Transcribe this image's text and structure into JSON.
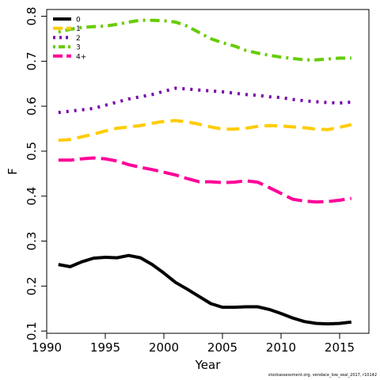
{
  "chart_data": {
    "type": "line",
    "xlabel": "Year",
    "ylabel": "F",
    "xlim": [
      1990,
      2017.5
    ],
    "ylim": [
      0.095,
      0.815
    ],
    "x_ticks": [
      1990,
      1995,
      2000,
      2005,
      2010,
      2015
    ],
    "y_ticks": [
      0.1,
      0.2,
      0.3,
      0.4,
      0.5,
      0.6,
      0.7,
      0.8
    ],
    "x_tick_labels": [
      "1990",
      "1995",
      "2000",
      "2005",
      "2010",
      "2015"
    ],
    "y_tick_labels": [
      "0.1",
      "0.2",
      "0.3",
      "0.4",
      "0.5",
      "0.6",
      "0.7",
      "0.8"
    ],
    "legend_position": "top-left",
    "x": [
      1991,
      1992,
      1993,
      1994,
      1995,
      1996,
      1997,
      1998,
      1999,
      2000,
      2001,
      2002,
      2003,
      2004,
      2005,
      2006,
      2007,
      2008,
      2009,
      2010,
      2011,
      2012,
      2013,
      2014,
      2015,
      2016
    ],
    "series": [
      {
        "name": "0",
        "color": "#000000",
        "dash": "solid",
        "values": [
          0.248,
          0.243,
          0.254,
          0.262,
          0.264,
          0.263,
          0.268,
          0.263,
          0.248,
          0.229,
          0.208,
          0.193,
          0.177,
          0.161,
          0.153,
          0.153,
          0.154,
          0.154,
          0.148,
          0.139,
          0.129,
          0.121,
          0.117,
          0.116,
          0.117,
          0.12
        ]
      },
      {
        "name": "1",
        "color": "#FFCC00",
        "dash": "long",
        "values": [
          0.524,
          0.526,
          0.532,
          0.538,
          0.545,
          0.551,
          0.554,
          0.557,
          0.562,
          0.566,
          0.568,
          0.565,
          0.56,
          0.554,
          0.549,
          0.549,
          0.551,
          0.555,
          0.557,
          0.556,
          0.554,
          0.552,
          0.549,
          0.548,
          0.553,
          0.559
        ]
      },
      {
        "name": "2",
        "color": "#7700AA",
        "dash": "dot",
        "values": [
          0.586,
          0.589,
          0.592,
          0.595,
          0.602,
          0.609,
          0.616,
          0.621,
          0.626,
          0.633,
          0.64,
          0.638,
          0.636,
          0.634,
          0.632,
          0.629,
          0.626,
          0.624,
          0.621,
          0.619,
          0.615,
          0.612,
          0.61,
          0.608,
          0.607,
          0.609
        ]
      },
      {
        "name": "3",
        "color": "#66CC00",
        "dash": "dotdash",
        "values": [
          0.765,
          0.771,
          0.775,
          0.777,
          0.778,
          0.782,
          0.787,
          0.791,
          0.791,
          0.79,
          0.787,
          0.778,
          0.764,
          0.75,
          0.741,
          0.734,
          0.724,
          0.718,
          0.713,
          0.709,
          0.706,
          0.703,
          0.703,
          0.705,
          0.707,
          0.707
        ]
      },
      {
        "name": "4+",
        "color": "#FF0099",
        "dash": "longdash",
        "values": [
          0.48,
          0.48,
          0.483,
          0.485,
          0.483,
          0.478,
          0.47,
          0.464,
          0.459,
          0.453,
          0.447,
          0.439,
          0.432,
          0.432,
          0.43,
          0.431,
          0.434,
          0.431,
          0.419,
          0.406,
          0.393,
          0.389,
          0.387,
          0.388,
          0.391,
          0.395
        ]
      }
    ]
  },
  "credit": "stockassessment.org, vendace_low_seal_2017, r10142"
}
